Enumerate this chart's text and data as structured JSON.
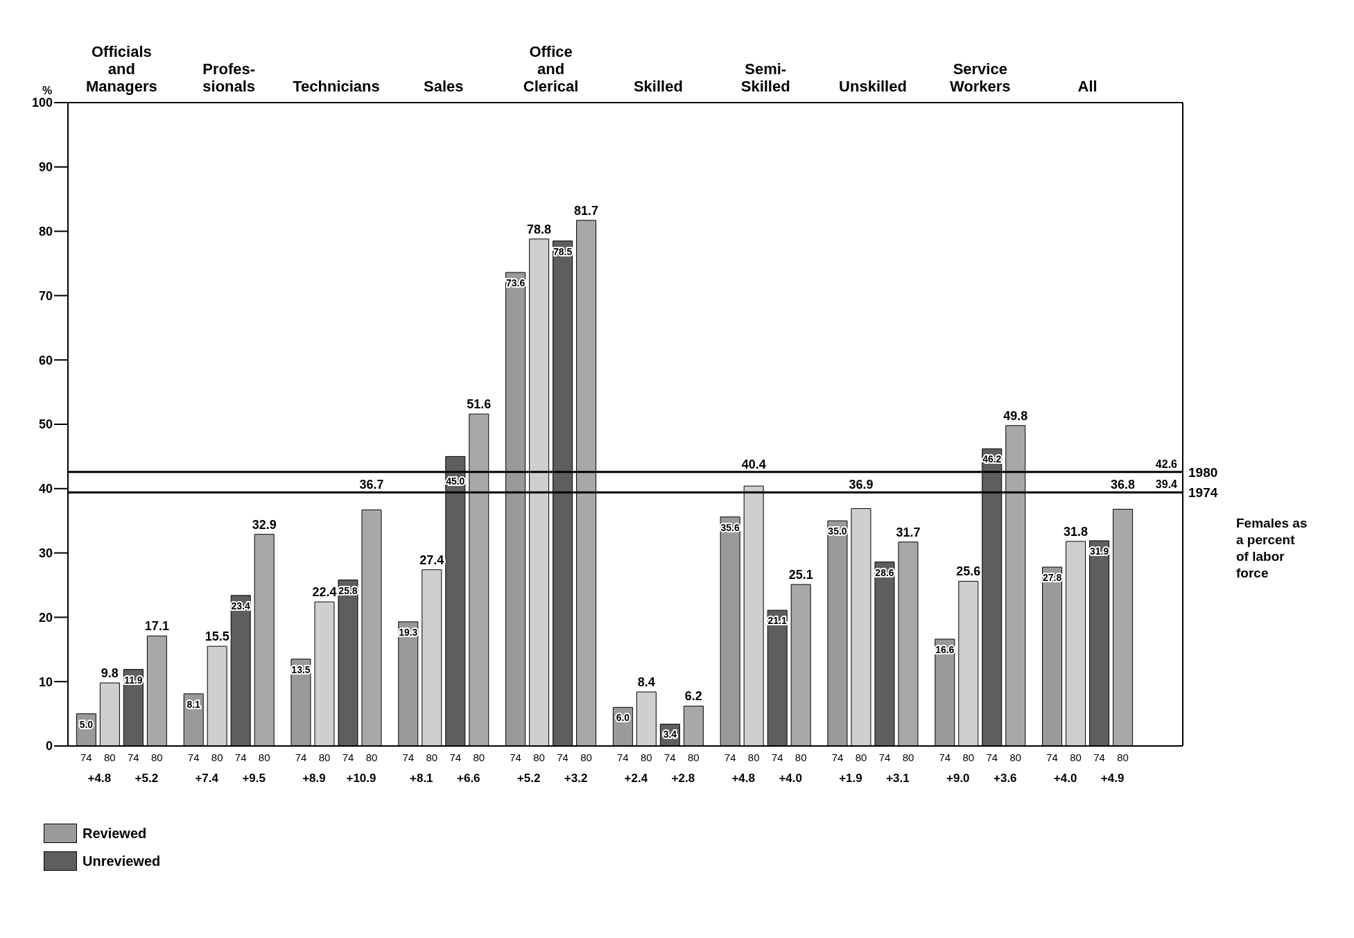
{
  "chart_data": {
    "type": "bar",
    "ylabel": "%",
    "categories": [
      "Officials\nand\nManagers",
      "Profes-\nsionals",
      "Technicians",
      "Sales",
      "Office\nand\nClerical",
      "Skilled",
      "Semi-\nSkilled",
      "Unskilled",
      "Service\nWorkers",
      "All"
    ],
    "series": [
      {
        "name": "Reviewed",
        "color": "#9a9a9a",
        "values": [
          5.0,
          8.1,
          13.5,
          19.3,
          73.6,
          6.0,
          35.6,
          35.0,
          16.6,
          27.8
        ],
        "value_labels": [
          "5.0",
          "8.1",
          "13.5",
          "19.3",
          "73.6",
          "6.0",
          "35.6",
          "35.0",
          "16.6",
          "27.8"
        ]
      },
      {
        "color": "#cfcfcf",
        "values": [
          9.8,
          15.5,
          22.4,
          27.4,
          78.8,
          8.4,
          40.4,
          36.9,
          25.6,
          31.8
        ],
        "value_labels": [
          "9.8",
          "15.5",
          "22.4",
          "27.4",
          "78.8",
          "8.4",
          "40.4",
          "36.9",
          "25.6",
          "31.8"
        ]
      },
      {
        "name": "Unreviewed",
        "color": "#5e5e5e",
        "values": [
          11.9,
          23.4,
          25.8,
          45.0,
          78.5,
          3.4,
          21.1,
          28.6,
          46.2,
          31.9
        ],
        "value_labels": [
          "11.9",
          "23.4",
          "25.8",
          "45.0",
          "78.5",
          "3.4",
          "21.1",
          "28.6",
          "46.2",
          "31.9"
        ]
      },
      {
        "color": "#a8a8a8",
        "values": [
          17.1,
          32.9,
          36.7,
          51.6,
          81.7,
          6.2,
          25.1,
          31.7,
          49.8,
          36.8
        ],
        "value_labels": [
          "17.1",
          "32.9",
          "36.7",
          "51.6",
          "81.7",
          "6.2",
          "25.1",
          "31.7",
          "49.8",
          "36.8"
        ]
      }
    ],
    "ylim": [
      0,
      100
    ],
    "yticks": [
      0,
      10,
      20,
      30,
      40,
      50,
      60,
      70,
      80,
      90,
      100
    ],
    "ref_lines": [
      {
        "axis": "y",
        "value": 42.6,
        "label": "42.6",
        "color": "#000000"
      },
      {
        "axis": "y",
        "value": 39.4,
        "label": "39.4",
        "color": "#000000"
      }
    ],
    "annotations": [
      "74",
      "80",
      "+4.8",
      "+5.2",
      "+7.4",
      "+9.5",
      "+8.9",
      "+10.9",
      "+8.1",
      "+6.6",
      "+5.2",
      "+3.2",
      "+2.4",
      "+2.8",
      "+4.8",
      "+4.0",
      "+1.9",
      "+3.1",
      "+9.0",
      "+3.6",
      "+4.0",
      "+4.9",
      "Females as\na percent\nof labor\nforce",
      "1980",
      "1974"
    ],
    "legend": "bottom",
    "grid": false
  }
}
